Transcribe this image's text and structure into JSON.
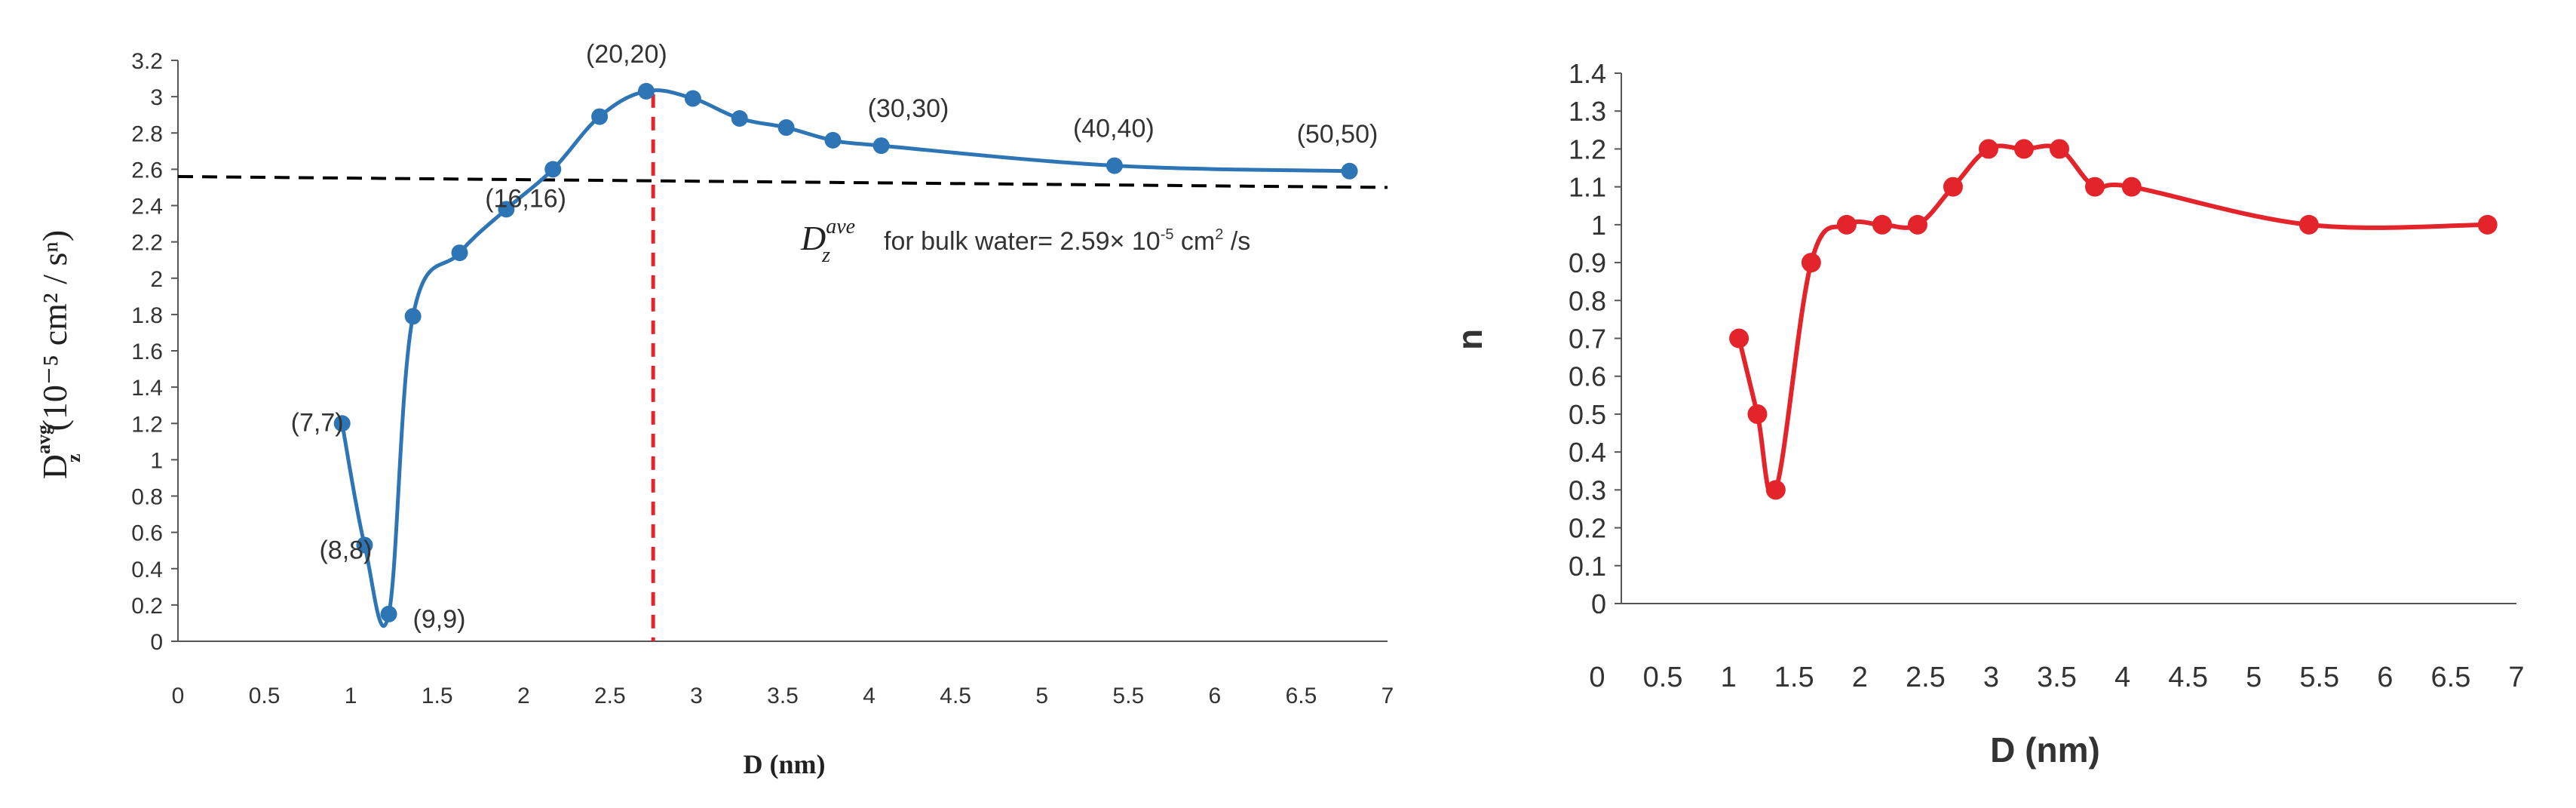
{
  "chart_data": [
    {
      "type": "line",
      "title": "",
      "xlabel": "D (nm)",
      "ylabel": {
        "symbol": "D",
        "superscript": "avg",
        "subscript": "z",
        "units": "(10⁻⁵ cm² / sⁿ)"
      },
      "xlim": [
        0,
        7
      ],
      "ylim": [
        0,
        3.2
      ],
      "x_ticks": [
        "0",
        "0.5",
        "1",
        "1.5",
        "2",
        "2.5",
        "3",
        "3.5",
        "4",
        "4.5",
        "5",
        "5.5",
        "6",
        "6.5",
        "7"
      ],
      "y_ticks": [
        "0",
        "0.2",
        "0.4",
        "0.6",
        "0.8",
        "1",
        "1.2",
        "1.4",
        "1.6",
        "1.8",
        "2",
        "2.2",
        "2.4",
        "2.6",
        "2.8",
        "3",
        "3.2"
      ],
      "series": [
        {
          "name": "D_z^avg",
          "color": "#2e75b6",
          "x": [
            0.95,
            1.08,
            1.22,
            1.36,
            1.63,
            1.9,
            2.17,
            2.44,
            2.71,
            2.98,
            3.25,
            3.52,
            3.79,
            4.07,
            5.42,
            6.78
          ],
          "y": [
            1.2,
            0.53,
            0.15,
            1.79,
            2.14,
            2.38,
            2.6,
            2.89,
            3.03,
            2.99,
            2.88,
            2.83,
            2.76,
            2.73,
            2.62,
            2.59
          ]
        }
      ],
      "reference_line": {
        "x": [
          0,
          7
        ],
        "y": [
          2.56,
          2.5
        ],
        "style": "dashed",
        "color": "#000000"
      },
      "vertical_line": {
        "x": 2.75,
        "style": "dashed",
        "color": "#e3242b"
      },
      "annotations": [
        {
          "text": "(7,7)",
          "x": 0.95,
          "y": 1.2
        },
        {
          "text": "(8,8)",
          "x": 1.08,
          "y": 0.53
        },
        {
          "text": "(9,9)",
          "x": 1.22,
          "y": 0.15
        },
        {
          "text": "(16,16)",
          "x": 2.17,
          "y": 2.6
        },
        {
          "text": "(20,20)",
          "x": 2.71,
          "y": 3.03
        },
        {
          "text": "(30,30)",
          "x": 4.07,
          "y": 2.73
        },
        {
          "text": "(40,40)",
          "x": 5.42,
          "y": 2.62
        },
        {
          "text": "(50,50)",
          "x": 6.78,
          "y": 2.59
        }
      ],
      "reference_label": {
        "symbol": "D",
        "superscript": "ave",
        "subscript": "z",
        "text_before_exp": "for bulk water= 2.59× 10",
        "exponent": "-5",
        "text_after_exp": " cm",
        "unit_exp": "2",
        "text_end": " /s"
      }
    },
    {
      "type": "line",
      "title": "",
      "xlabel": "D (nm)",
      "ylabel": "n",
      "xlim": [
        0,
        7
      ],
      "ylim": [
        0,
        1.4
      ],
      "x_ticks": [
        "0",
        "0.5",
        "1",
        "1.5",
        "2",
        "2.5",
        "3",
        "3.5",
        "4",
        "4.5",
        "5",
        "5.5",
        "6",
        "6.5",
        "7"
      ],
      "y_ticks": [
        "0",
        "0.1",
        "0.2",
        "0.3",
        "0.4",
        "0.5",
        "0.6",
        "0.7",
        "0.8",
        "0.9",
        "1",
        "1.1",
        "1.2",
        "1.3",
        "1.4"
      ],
      "series": [
        {
          "name": "n",
          "color": "#e3242b",
          "x": [
            1.08,
            1.22,
            1.36,
            1.63,
            1.9,
            2.17,
            2.44,
            2.71,
            2.98,
            3.25,
            3.52,
            3.79,
            4.07,
            5.42,
            6.78
          ],
          "y": [
            0.7,
            0.5,
            0.3,
            0.9,
            1.0,
            1.0,
            1.0,
            1.1,
            1.2,
            1.2,
            1.2,
            1.1,
            1.1,
            1.0,
            1.0
          ]
        }
      ]
    }
  ]
}
